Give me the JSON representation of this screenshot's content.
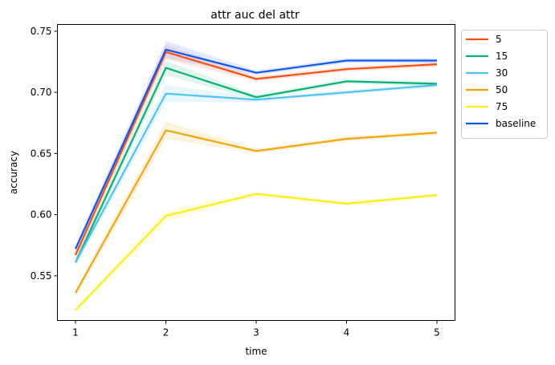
{
  "chart_data": {
    "type": "line",
    "title": "attr auc del attr",
    "xlabel": "time",
    "ylabel": "accuracy",
    "x": [
      1,
      2,
      3,
      4,
      5
    ],
    "xticks": [
      "1",
      "2",
      "3",
      "4",
      "5"
    ],
    "yticks": [
      "0.55",
      "0.60",
      "0.65",
      "0.70",
      "0.75"
    ],
    "ytick_values": [
      0.55,
      0.6,
      0.65,
      0.7,
      0.75
    ],
    "xlim": [
      0.8,
      5.2
    ],
    "ylim": [
      0.5135,
      0.7555
    ],
    "grid": false,
    "legend_position": "outside-top-right",
    "series": [
      {
        "name": "5",
        "color": "#ff4f0f",
        "values": [
          0.567,
          0.733,
          0.711,
          0.719,
          0.723
        ],
        "band": [
          0.004,
          0.006,
          0.002,
          0.002,
          0.002
        ]
      },
      {
        "name": "15",
        "color": "#07b173",
        "values": [
          0.561,
          0.72,
          0.696,
          0.709,
          0.707
        ],
        "band": [
          0.003,
          0.006,
          0.002,
          0.002,
          0.002
        ]
      },
      {
        "name": "30",
        "color": "#4fc3f7",
        "values": [
          0.561,
          0.699,
          0.694,
          0.7,
          0.706
        ],
        "band": [
          0.003,
          0.007,
          0.002,
          0.002,
          0.002
        ]
      },
      {
        "name": "50",
        "color": "#f5a607",
        "values": [
          0.536,
          0.669,
          0.652,
          0.662,
          0.667
        ],
        "band": [
          0.003,
          0.007,
          0.002,
          0.002,
          0.002
        ]
      },
      {
        "name": "75",
        "color": "#ffee11",
        "values": [
          0.522,
          0.599,
          0.617,
          0.609,
          0.616
        ],
        "band": [
          0.002,
          0.005,
          0.002,
          0.002,
          0.002
        ]
      },
      {
        "name": "baseline",
        "color": "#1155ee",
        "values": [
          0.572,
          0.735,
          0.716,
          0.726,
          0.726
        ],
        "band": [
          0.003,
          0.007,
          0.002,
          0.002,
          0.002
        ]
      }
    ]
  }
}
